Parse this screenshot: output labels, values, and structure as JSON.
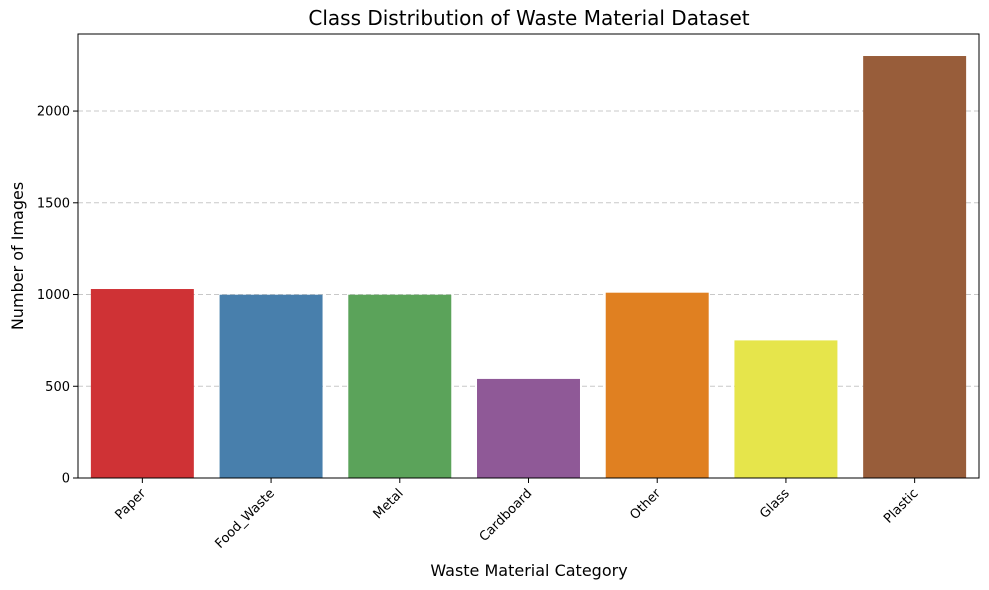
{
  "chart_data": {
    "type": "bar",
    "title": "Class Distribution of Waste Material Dataset",
    "xlabel": "Waste Material Category",
    "ylabel": "Number of Images",
    "categories": [
      "Paper",
      "Food_Waste",
      "Metal",
      "Cardboard",
      "Other",
      "Glass",
      "Plastic"
    ],
    "values": [
      1030,
      999,
      999,
      540,
      1010,
      750,
      2300
    ],
    "colors": [
      "#cf3235",
      "#487fac",
      "#5ba35a",
      "#8f5997",
      "#e08021",
      "#e6e54b",
      "#985d3a"
    ],
    "ylim": [
      0,
      2420
    ],
    "yticks": [
      0,
      500,
      1000,
      1500,
      2000
    ],
    "grid": "y-dashed",
    "xtick_rotation": 45
  }
}
